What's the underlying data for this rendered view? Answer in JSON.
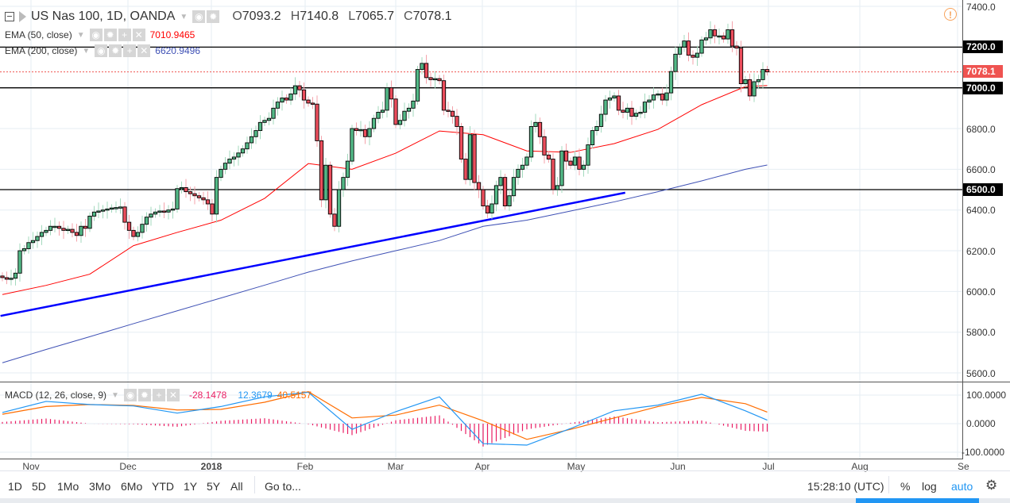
{
  "header": {
    "symbol_title": "US Nas 100, 1D, OANDA",
    "ohlc": [
      {
        "label": "O",
        "value": "7093.2"
      },
      {
        "label": "H",
        "value": "7140.8"
      },
      {
        "label": "L",
        "value": "7065.7"
      },
      {
        "label": "C",
        "value": "7078.1"
      }
    ]
  },
  "indicators": {
    "ema50": {
      "label": "EMA (50, close)",
      "value": "7010.9465",
      "color": "#ff0000"
    },
    "ema200": {
      "label": "EMA (200, close)",
      "value": "6620.9496",
      "color": "#3f51b5"
    },
    "macd": {
      "label": "MACD (12, 26, close, 9)",
      "hist": "-28.1478",
      "macd": "12.3679",
      "signal": "40.5157",
      "hist_color": "#e91e63",
      "macd_color": "#2196f3",
      "signal_color": "#ff6d00"
    }
  },
  "price_axis": {
    "ticks": [
      "7400.0",
      "6800.0",
      "6600.0",
      "6400.0",
      "6200.0",
      "6000.0",
      "5800.0",
      "5600.0"
    ],
    "levels": [
      {
        "value": "7200.0"
      },
      {
        "value": "7000.0"
      },
      {
        "value": "6500.0"
      }
    ],
    "last_price": "7078.1",
    "last_color": "#ef5350"
  },
  "macd_axis": {
    "ticks": [
      "100.0000",
      "0.0000",
      "-100.0000"
    ]
  },
  "time_axis": {
    "labels": [
      "Nov",
      "Dec",
      "2018",
      "Feb",
      "Mar",
      "Apr",
      "May",
      "Jun",
      "Jul",
      "Aug",
      "Sep"
    ]
  },
  "toolbar": {
    "ranges": [
      "1D",
      "5D",
      "1Mo",
      "3Mo",
      "6Mo",
      "YTD",
      "1Y",
      "5Y",
      "All"
    ],
    "goto": "Go to...",
    "clock": "15:28:10 (UTC)",
    "percent": "%",
    "log": "log",
    "auto": "auto"
  },
  "chart_data": {
    "type": "candlestick",
    "interval": "1D",
    "colors": {
      "up": "#53b987",
      "down": "#eb4d5c"
    },
    "ylim": [
      5550,
      7440
    ],
    "closes": [
      6068,
      6060,
      6065,
      6090,
      6200,
      6210,
      6240,
      6250,
      6270,
      6290,
      6300,
      6320,
      6320,
      6310,
      6300,
      6305,
      6290,
      6275,
      6320,
      6310,
      6370,
      6390,
      6395,
      6400,
      6405,
      6410,
      6412,
      6415,
      6340,
      6300,
      6270,
      6290,
      6330,
      6365,
      6380,
      6390,
      6395,
      6390,
      6400,
      6405,
      6505,
      6510,
      6490,
      6480,
      6470,
      6460,
      6450,
      6430,
      6380,
      6560,
      6600,
      6630,
      6650,
      6660,
      6680,
      6700,
      6730,
      6760,
      6790,
      6830,
      6840,
      6850,
      6900,
      6930,
      6950,
      6940,
      6970,
      7010,
      6990,
      6940,
      6925,
      6920,
      6740,
      6450,
      6620,
      6380,
      6320,
      6500,
      6560,
      6640,
      6800,
      6790,
      6795,
      6760,
      6800,
      6850,
      6880,
      6890,
      7000,
      6945,
      6820,
      6840,
      6885,
      6900,
      6935,
      7090,
      7120,
      7050,
      7040,
      7045,
      7035,
      6890,
      6885,
      6860,
      6810,
      6650,
      6550,
      6770,
      6535,
      6500,
      6420,
      6385,
      6430,
      6520,
      6560,
      6420,
      6470,
      6560,
      6600,
      6620,
      6660,
      6810,
      6830,
      6760,
      6670,
      6650,
      6500,
      6520,
      6690,
      6640,
      6620,
      6660,
      6600,
      6620,
      6720,
      6790,
      6810,
      6870,
      6940,
      6950,
      6960,
      6890,
      6880,
      6900,
      6860,
      6875,
      6880,
      6930,
      6940,
      6965,
      6970,
      6940,
      6975,
      7080,
      7165,
      7200,
      7230,
      7160,
      7150,
      7170,
      7235,
      7245,
      7285,
      7255,
      7255,
      7240,
      7285,
      7205,
      7195,
      7020,
      7040,
      6960,
      7030,
      7040,
      7090,
      7078.1
    ],
    "ema50_every_10_bars": [
      5985,
      6030,
      6085,
      6225,
      6290,
      6350,
      6457,
      6628,
      6600,
      6679,
      6788,
      6770,
      6690,
      6683,
      6726,
      6796,
      6917,
      7006,
      7010.9465
    ],
    "ema200_every_10_bars": [
      5650,
      5715,
      5778,
      5842,
      5905,
      5968,
      6031,
      6095,
      6150,
      6200,
      6250,
      6320,
      6350,
      6395,
      6440,
      6490,
      6543,
      6600,
      6620.9496
    ],
    "macd_every_10_bars": [
      39,
      78,
      67,
      62,
      37,
      60,
      94,
      110,
      -20,
      42,
      94,
      -70,
      -75,
      -17,
      45,
      65,
      103,
      45,
      12.3679
    ],
    "signal_every_10_bars": [
      33,
      60,
      67,
      64,
      48,
      50,
      75,
      112,
      20,
      30,
      65,
      10,
      -55,
      -20,
      20,
      60,
      92,
      70,
      40.5157
    ],
    "horizontal_levels": [
      7200,
      7000,
      6500
    ],
    "trendline": {
      "start_price": 5880,
      "end_price": 6485,
      "start_date": "2017-10-22",
      "end_date": "2018-05-15",
      "color": "#0000ff"
    },
    "macd_ylim": [
      -130,
      140
    ]
  }
}
